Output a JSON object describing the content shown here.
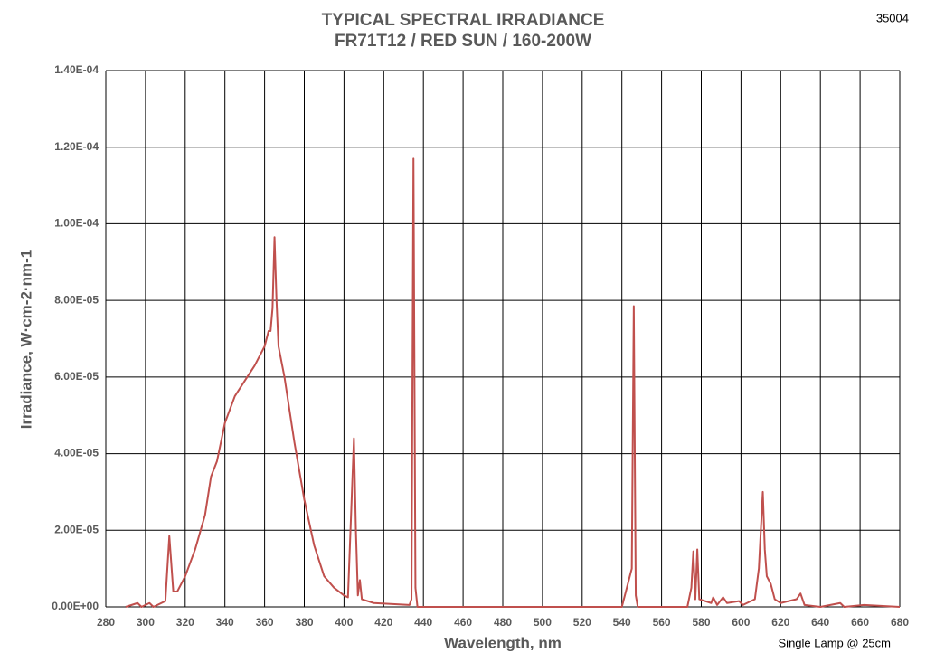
{
  "chart_data": {
    "type": "line",
    "title": "TYPICAL SPECTRAL IRRADIANCE",
    "subtitle": "FR71T12 / RED SUN / 160-200W",
    "id_label": "35004",
    "note": "Single Lamp @ 25cm",
    "x_label": "Wavelength, nm",
    "y_label": "Irradiance, W·cm-2·nm-1",
    "xlim": [
      280,
      680
    ],
    "xticks": [
      280,
      300,
      320,
      340,
      360,
      380,
      400,
      420,
      440,
      460,
      480,
      500,
      520,
      540,
      560,
      580,
      600,
      620,
      640,
      660,
      680
    ],
    "ylim": [
      0,
      0.00014
    ],
    "yticks": [
      {
        "value": 0,
        "label": "0.00E+00"
      },
      {
        "value": 2e-05,
        "label": "2.00E-05"
      },
      {
        "value": 4e-05,
        "label": "4.00E-05"
      },
      {
        "value": 6e-05,
        "label": "6.00E-05"
      },
      {
        "value": 8e-05,
        "label": "8.00E-05"
      },
      {
        "value": 0.0001,
        "label": "1.00E-04"
      },
      {
        "value": 0.00012,
        "label": "1.20E-04"
      },
      {
        "value": 0.00014,
        "label": "1.40E-04"
      }
    ],
    "grid": true,
    "x": [
      290,
      296,
      298,
      302,
      304,
      310,
      312,
      314,
      316,
      320,
      325,
      330,
      333,
      336,
      340,
      345,
      350,
      355,
      360,
      362,
      363,
      364,
      365,
      366,
      367,
      370,
      375,
      380,
      385,
      390,
      395,
      400,
      402,
      404,
      405,
      406,
      407,
      408,
      409,
      415,
      433,
      434,
      435,
      436,
      437,
      540,
      545,
      546,
      547,
      548,
      573,
      575,
      576,
      577,
      578,
      579,
      585,
      586,
      588,
      591,
      593,
      599,
      601,
      607,
      609,
      611,
      612,
      613,
      615,
      617,
      620,
      628,
      630,
      632,
      640,
      650,
      652,
      662,
      680
    ],
    "series": [
      {
        "name": "Irradiance",
        "color": "#c0504d",
        "values": [
          0,
          1e-06,
          0,
          1e-06,
          0,
          1.5e-06,
          1.85e-05,
          4e-06,
          4e-06,
          8e-06,
          1.5e-05,
          2.4e-05,
          3.4e-05,
          3.8e-05,
          4.8e-05,
          5.5e-05,
          5.9e-05,
          6.3e-05,
          6.8e-05,
          7.2e-05,
          7.2e-05,
          7.8e-05,
          9.65e-05,
          8e-05,
          6.8e-05,
          6e-05,
          4.3e-05,
          2.8e-05,
          1.6e-05,
          8e-06,
          5e-06,
          3e-06,
          2.5e-06,
          3e-05,
          4.4e-05,
          2e-05,
          3e-06,
          7e-06,
          2e-06,
          1e-06,
          5e-07,
          2e-06,
          0.000117,
          5e-06,
          0,
          0,
          1e-05,
          7.85e-05,
          3e-06,
          0,
          0,
          5e-06,
          1.45e-05,
          2e-06,
          1.5e-05,
          2e-06,
          1e-06,
          2.5e-06,
          5e-07,
          2.5e-06,
          1e-06,
          1.5e-06,
          5e-07,
          2e-06,
          1e-05,
          3e-05,
          1.5e-05,
          8e-06,
          6e-06,
          2e-06,
          1e-06,
          2e-06,
          3.5e-06,
          5e-07,
          0,
          1e-06,
          0,
          5e-07,
          0
        ]
      }
    ]
  }
}
